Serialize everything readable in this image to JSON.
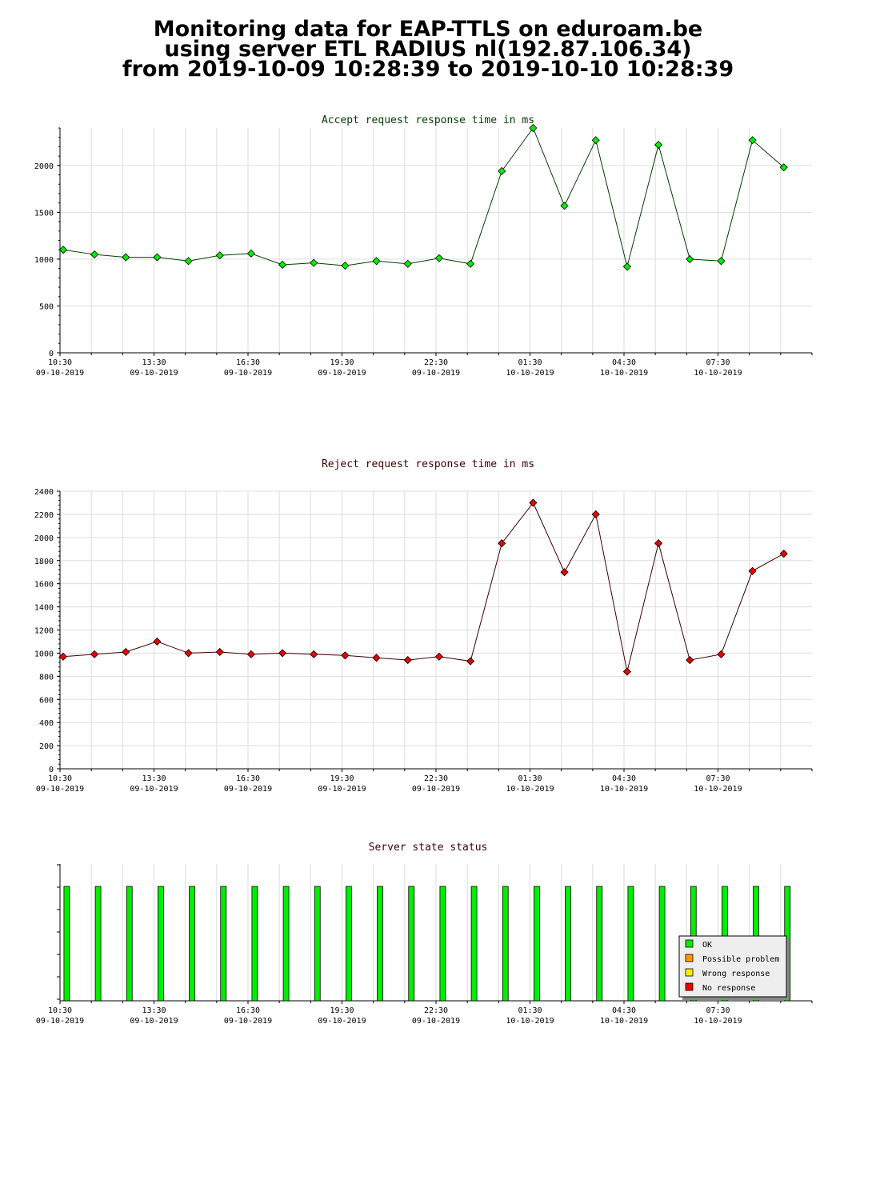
{
  "header": {
    "line1": "Monitoring data for EAP-TTLS on eduroam.be",
    "line2": "using server ETL RADIUS nl(192.87.106.34)",
    "line3": "from 2019-10-09 10:28:39 to 2019-10-10 10:28:39"
  },
  "x_ticks": [
    {
      "time": "10:30",
      "date": "09-10-2019"
    },
    {
      "time": "13:30",
      "date": "09-10-2019"
    },
    {
      "time": "16:30",
      "date": "09-10-2019"
    },
    {
      "time": "19:30",
      "date": "09-10-2019"
    },
    {
      "time": "22:30",
      "date": "09-10-2019"
    },
    {
      "time": "01:30",
      "date": "10-10-2019"
    },
    {
      "time": "04:30",
      "date": "10-10-2019"
    },
    {
      "time": "07:30",
      "date": "10-10-2019"
    }
  ],
  "chart_data": [
    {
      "type": "line",
      "title": "Accept request response time in ms",
      "color": "#00ee00",
      "title_color": "#004000",
      "ylim": [
        0,
        2400
      ],
      "yticks": [
        0,
        500,
        1000,
        1500,
        2000
      ],
      "x_hours": [
        0.1,
        1.1,
        2.1,
        3.1,
        4.1,
        5.1,
        6.1,
        7.1,
        8.1,
        9.1,
        10.1,
        11.1,
        12.1,
        13.1,
        14.1,
        15.1,
        16.1,
        17.1,
        18.1,
        19.1,
        20.1,
        21.1,
        22.1,
        23.1
      ],
      "values": [
        1100,
        1050,
        1020,
        1020,
        980,
        1040,
        1060,
        940,
        960,
        930,
        980,
        950,
        1010,
        950,
        1940,
        2400,
        1570,
        2270,
        920,
        2220,
        1000,
        980,
        2270,
        1980
      ]
    },
    {
      "type": "line",
      "title": "Reject request response time in ms",
      "color": "#ee0000",
      "title_color": "#400000",
      "ylim": [
        0,
        2400
      ],
      "yticks": [
        0,
        200,
        400,
        600,
        800,
        1000,
        1200,
        1400,
        1600,
        1800,
        2000,
        2200,
        2400
      ],
      "x_hours": [
        0.1,
        1.1,
        2.1,
        3.1,
        4.1,
        5.1,
        6.1,
        7.1,
        8.1,
        9.1,
        10.1,
        11.1,
        12.1,
        13.1,
        14.1,
        15.1,
        16.1,
        17.1,
        18.1,
        19.1,
        20.1,
        21.1,
        22.1,
        23.1
      ],
      "values": [
        970,
        990,
        1010,
        1100,
        1000,
        1010,
        990,
        1000,
        990,
        980,
        960,
        940,
        970,
        930,
        1950,
        2300,
        1700,
        2200,
        840,
        1950,
        940,
        990,
        1710,
        1860
      ]
    },
    {
      "type": "bar",
      "title": "Server state status",
      "title_color": "#400000",
      "x_hours": [
        0.1,
        1.1,
        2.1,
        3.1,
        4.1,
        5.1,
        6.1,
        7.1,
        8.1,
        9.1,
        10.1,
        11.1,
        12.1,
        13.1,
        14.1,
        15.1,
        16.1,
        17.1,
        18.1,
        19.1,
        20.1,
        21.1,
        22.1,
        23.1
      ],
      "states": [
        "OK",
        "OK",
        "OK",
        "OK",
        "OK",
        "OK",
        "OK",
        "OK",
        "OK",
        "OK",
        "OK",
        "OK",
        "OK",
        "OK",
        "OK",
        "OK",
        "OK",
        "OK",
        "OK",
        "OK",
        "OK",
        "OK",
        "OK",
        "OK"
      ],
      "legend": [
        {
          "label": "OK",
          "color": "#00ee00"
        },
        {
          "label": "Possible problem",
          "color": "#ff9900"
        },
        {
          "label": "Wrong response",
          "color": "#ffee00"
        },
        {
          "label": "No response",
          "color": "#ee0000"
        }
      ]
    }
  ]
}
